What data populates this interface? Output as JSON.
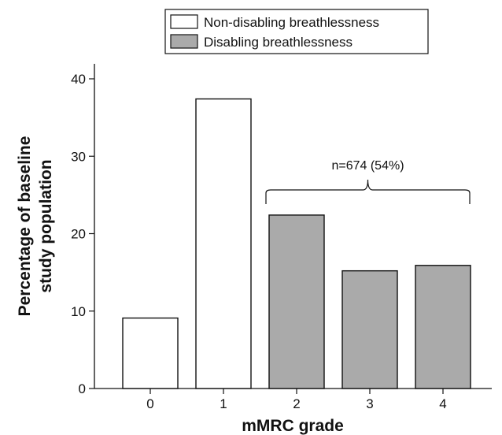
{
  "chart_data": {
    "type": "bar",
    "title": "",
    "xlabel": "mMRC grade",
    "ylabel_lines": [
      "Percentage of baseline",
      "study population"
    ],
    "categories": [
      "0",
      "1",
      "2",
      "3",
      "4"
    ],
    "values": [
      9.1,
      37.4,
      22.4,
      15.2,
      15.9
    ],
    "bar_groups": [
      "non_disabling",
      "non_disabling",
      "disabling",
      "disabling",
      "disabling"
    ],
    "ylim": [
      0,
      42
    ],
    "yticks": [
      0,
      10,
      20,
      30,
      40
    ],
    "grid": false,
    "legend_position": "top",
    "legend": [
      {
        "key": "non_disabling",
        "label": "Non-disabling breathlessness",
        "color": "#ffffff"
      },
      {
        "key": "disabling",
        "label": "Disabling breathlessness",
        "color": "#aaaaaa"
      }
    ],
    "annotation": {
      "text": "n=674 (54%)",
      "spans_categories": [
        "2",
        "3",
        "4"
      ]
    }
  }
}
